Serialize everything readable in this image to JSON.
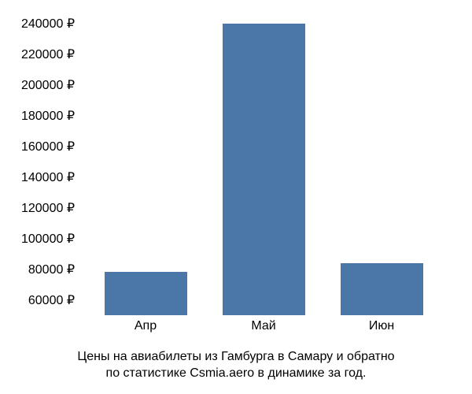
{
  "chart": {
    "type": "bar",
    "categories": [
      "Апр",
      "Май",
      "Июн"
    ],
    "values": [
      78000,
      240000,
      84000
    ],
    "bar_color": "#4a76a8",
    "y_min": 50000,
    "y_max": 245000,
    "y_ticks": [
      60000,
      80000,
      100000,
      120000,
      140000,
      160000,
      180000,
      200000,
      220000,
      240000
    ],
    "y_tick_labels": [
      "60000 ₽",
      "80000 ₽",
      "100000 ₽",
      "120000 ₽",
      "140000 ₽",
      "160000 ₽",
      "180000 ₽",
      "200000 ₽",
      "220000 ₽",
      "240000 ₽"
    ],
    "background_color": "#ffffff",
    "text_color": "#000000",
    "tick_fontsize": 16,
    "caption_fontsize": 16,
    "bar_width_ratio": 0.7,
    "caption_line1": "Цены на авиабилеты из Гамбурга в Самару и обратно",
    "caption_line2": "по статистике Csmia.aero в динамике за год."
  }
}
